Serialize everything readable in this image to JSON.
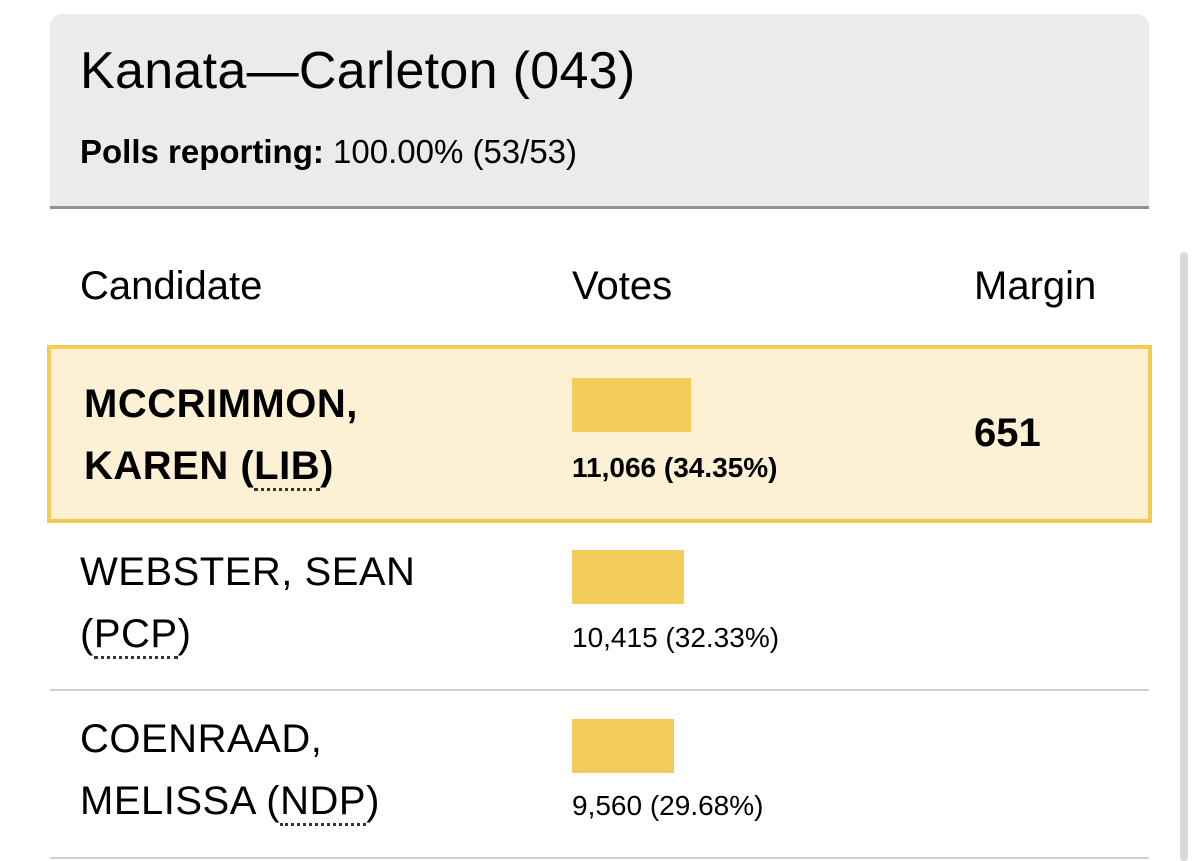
{
  "riding": {
    "title": "Kanata—Carleton (043)",
    "polls_label": "Polls reporting:",
    "polls_value": "100.00% (53/53)"
  },
  "table": {
    "headers": {
      "candidate": "Candidate",
      "votes": "Votes",
      "margin": "Margin"
    },
    "rows": [
      {
        "name_line1": "MCCRIMMON,",
        "name_line2": "KAREN (",
        "party": "LIB",
        "close": ")",
        "votes": "11,066 (34.35%)",
        "percent": 34.35,
        "margin": "651",
        "winner": true
      },
      {
        "name_line1": "WEBSTER, SEAN",
        "name_line2": "(",
        "party": "PCP",
        "close": ")",
        "votes": "10,415 (32.33%)",
        "percent": 32.33,
        "margin": "",
        "winner": false
      },
      {
        "name_line1": "COENRAAD,",
        "name_line2": "MELISSA (",
        "party": "NDP",
        "close": ")",
        "votes": "9,560 (29.68%)",
        "percent": 29.68,
        "margin": "",
        "winner": false
      }
    ]
  },
  "colors": {
    "bar": "#f2cc5b",
    "winner_bg": "#fcf1d5",
    "winner_border": "#f2cc55",
    "header_bg": "#ebebeb"
  }
}
